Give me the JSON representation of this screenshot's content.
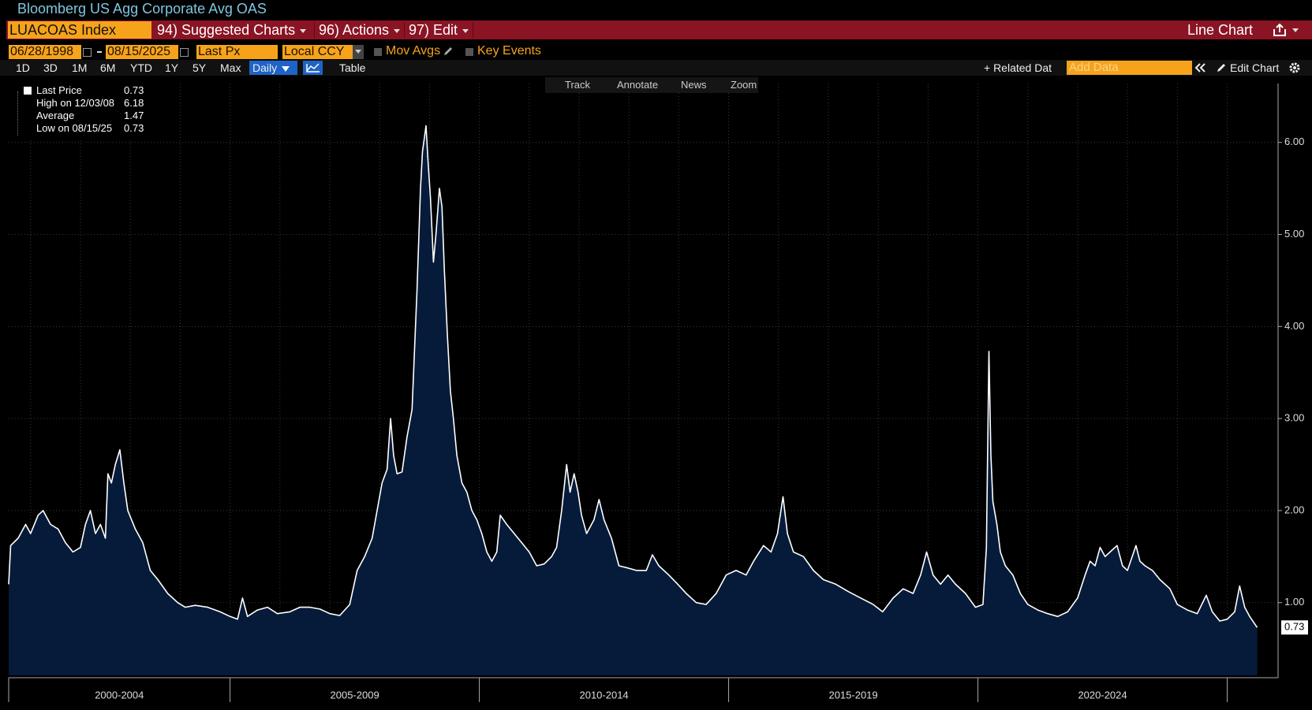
{
  "header": {
    "title": "Bloomberg US Agg Corporate Avg OAS",
    "ticker": "LUACOAS Index",
    "menu": [
      "94) Suggested Charts",
      "96) Actions",
      "97) Edit"
    ],
    "view": "Line Chart"
  },
  "controls": {
    "start_date": "06/28/1998",
    "end_date": "08/15/2025",
    "field": "Last Px",
    "currency": "Local CCY",
    "options": [
      "Mov Avgs",
      "Key Events"
    ],
    "ranges": [
      "1D",
      "3D",
      "1M",
      "6M",
      "YTD",
      "1Y",
      "5Y",
      "Max"
    ],
    "frequency": "Daily",
    "table": "Table",
    "related": "+ Related Dat",
    "add_data": "Add Data",
    "edit_chart": "Edit Chart",
    "tools": [
      "Track",
      "Annotate",
      "News",
      "Zoom"
    ]
  },
  "chart_data": {
    "type": "area",
    "x": [
      2000.56,
      2000.6,
      2000.75,
      2000.9,
      2001.0,
      2001.15,
      2001.25,
      2001.4,
      2001.55,
      2001.7,
      2001.85,
      2002.0,
      2002.1,
      2002.2,
      2002.3,
      2002.4,
      2002.5,
      2002.55,
      2002.62,
      2002.7,
      2002.79,
      2002.87,
      2002.95,
      2003.1,
      2003.25,
      2003.4,
      2003.55,
      2003.75,
      2003.95,
      2004.1,
      2004.3,
      2004.55,
      2004.8,
      2005.0,
      2005.15,
      2005.25,
      2005.35,
      2005.55,
      2005.75,
      2005.95,
      2006.2,
      2006.4,
      2006.6,
      2006.8,
      2007.0,
      2007.2,
      2007.4,
      2007.55,
      2007.7,
      2007.85,
      2007.95,
      2008.05,
      2008.15,
      2008.22,
      2008.28,
      2008.35,
      2008.45,
      2008.55,
      2008.65,
      2008.75,
      2008.82,
      2008.86,
      2008.93,
      2008.97,
      2009.02,
      2009.08,
      2009.13,
      2009.2,
      2009.25,
      2009.3,
      2009.36,
      2009.42,
      2009.48,
      2009.55,
      2009.65,
      2009.75,
      2009.85,
      2009.95,
      2010.05,
      2010.15,
      2010.25,
      2010.35,
      2010.42,
      2010.55,
      2010.7,
      2010.85,
      2011.0,
      2011.15,
      2011.3,
      2011.45,
      2011.55,
      2011.65,
      2011.75,
      2011.82,
      2011.9,
      2011.98,
      2012.05,
      2012.15,
      2012.3,
      2012.4,
      2012.5,
      2012.65,
      2012.8,
      2012.95,
      2013.15,
      2013.35,
      2013.47,
      2013.6,
      2013.8,
      2013.98,
      2014.15,
      2014.35,
      2014.55,
      2014.75,
      2014.95,
      2015.15,
      2015.35,
      2015.5,
      2015.7,
      2015.85,
      2015.98,
      2016.09,
      2016.18,
      2016.3,
      2016.5,
      2016.7,
      2016.9,
      2017.15,
      2017.4,
      2017.65,
      2017.9,
      2018.09,
      2018.3,
      2018.5,
      2018.7,
      2018.85,
      2018.97,
      2019.1,
      2019.25,
      2019.4,
      2019.55,
      2019.75,
      2019.95,
      2020.1,
      2020.17,
      2020.22,
      2020.26,
      2020.3,
      2020.38,
      2020.45,
      2020.55,
      2020.7,
      2020.85,
      2021.0,
      2021.2,
      2021.4,
      2021.6,
      2021.8,
      2022.0,
      2022.15,
      2022.25,
      2022.35,
      2022.45,
      2022.55,
      2022.65,
      2022.79,
      2022.9,
      2023.0,
      2023.17,
      2023.25,
      2023.35,
      2023.5,
      2023.65,
      2023.85,
      2024.0,
      2024.2,
      2024.4,
      2024.58,
      2024.7,
      2024.85,
      2025.0,
      2025.15,
      2025.25,
      2025.35,
      2025.45,
      2025.6
    ],
    "series": [
      {
        "name": "Last Price",
        "color": "#ffffff",
        "fill": "#061b3a",
        "values": [
          1.2,
          1.62,
          1.7,
          1.85,
          1.75,
          1.95,
          2.0,
          1.85,
          1.8,
          1.65,
          1.55,
          1.6,
          1.85,
          2.0,
          1.75,
          1.85,
          1.7,
          2.4,
          2.3,
          2.5,
          2.66,
          2.3,
          2.0,
          1.8,
          1.65,
          1.35,
          1.25,
          1.1,
          1.0,
          0.95,
          0.97,
          0.95,
          0.9,
          0.85,
          0.82,
          1.05,
          0.85,
          0.92,
          0.95,
          0.88,
          0.9,
          0.95,
          0.95,
          0.93,
          0.88,
          0.86,
          0.98,
          1.35,
          1.5,
          1.7,
          2.0,
          2.3,
          2.45,
          3.0,
          2.6,
          2.4,
          2.42,
          2.8,
          3.1,
          4.4,
          5.5,
          5.9,
          6.18,
          5.8,
          5.4,
          4.7,
          5.0,
          5.5,
          5.3,
          4.6,
          3.9,
          3.3,
          3.0,
          2.6,
          2.3,
          2.2,
          2.0,
          1.9,
          1.75,
          1.55,
          1.45,
          1.55,
          1.95,
          1.85,
          1.75,
          1.65,
          1.55,
          1.4,
          1.42,
          1.5,
          1.6,
          2.0,
          2.5,
          2.2,
          2.4,
          2.2,
          1.95,
          1.75,
          1.9,
          2.12,
          1.9,
          1.7,
          1.4,
          1.38,
          1.35,
          1.35,
          1.52,
          1.4,
          1.3,
          1.2,
          1.1,
          1.0,
          0.98,
          1.1,
          1.3,
          1.35,
          1.3,
          1.45,
          1.62,
          1.55,
          1.75,
          2.15,
          1.75,
          1.55,
          1.5,
          1.35,
          1.25,
          1.2,
          1.12,
          1.05,
          0.98,
          0.9,
          1.05,
          1.15,
          1.1,
          1.3,
          1.55,
          1.3,
          1.2,
          1.3,
          1.2,
          1.1,
          0.95,
          0.98,
          1.6,
          3.73,
          2.6,
          2.1,
          1.85,
          1.55,
          1.4,
          1.3,
          1.1,
          0.98,
          0.92,
          0.88,
          0.85,
          0.9,
          1.05,
          1.3,
          1.45,
          1.4,
          1.6,
          1.5,
          1.55,
          1.62,
          1.4,
          1.35,
          1.62,
          1.45,
          1.4,
          1.35,
          1.25,
          1.15,
          0.98,
          0.92,
          0.88,
          1.08,
          0.9,
          0.8,
          0.82,
          0.9,
          1.18,
          0.95,
          0.85,
          0.73
        ]
      }
    ],
    "stats": [
      {
        "label": "High on 12/03/08",
        "value": 6.18
      },
      {
        "label": "Average",
        "value": 1.47
      },
      {
        "label": "Low on 08/15/25",
        "value": 0.73
      }
    ],
    "periods": [
      {
        "label": "2000-2004",
        "start": 2000,
        "end": 2005
      },
      {
        "label": "2005-2009",
        "start": 2005,
        "end": 2010
      },
      {
        "label": "2010-2014",
        "start": 2010,
        "end": 2015
      },
      {
        "label": "2015-2019",
        "start": 2015,
        "end": 2020
      },
      {
        "label": "2020-2024",
        "start": 2020,
        "end": 2025
      }
    ],
    "xlim": [
      2000.56,
      2026.02
    ],
    "xticks": [
      2001,
      2002,
      2003,
      2004,
      2005,
      2006,
      2007,
      2008,
      2009,
      2010,
      2011,
      2012,
      2013,
      2014,
      2015,
      2016,
      2017,
      2018,
      2019,
      2020,
      2021,
      2022,
      2023,
      2024,
      2025
    ],
    "ylim": [
      0.21,
      6.64
    ],
    "yticks": [
      {
        "value": 1,
        "label": "1.00"
      },
      {
        "value": 2,
        "label": "2.00"
      },
      {
        "value": 3,
        "label": "3.00"
      },
      {
        "value": 4,
        "label": "4.00"
      },
      {
        "value": 5,
        "label": "5.00"
      },
      {
        "value": 6,
        "label": "6.00"
      }
    ],
    "grid": true
  }
}
